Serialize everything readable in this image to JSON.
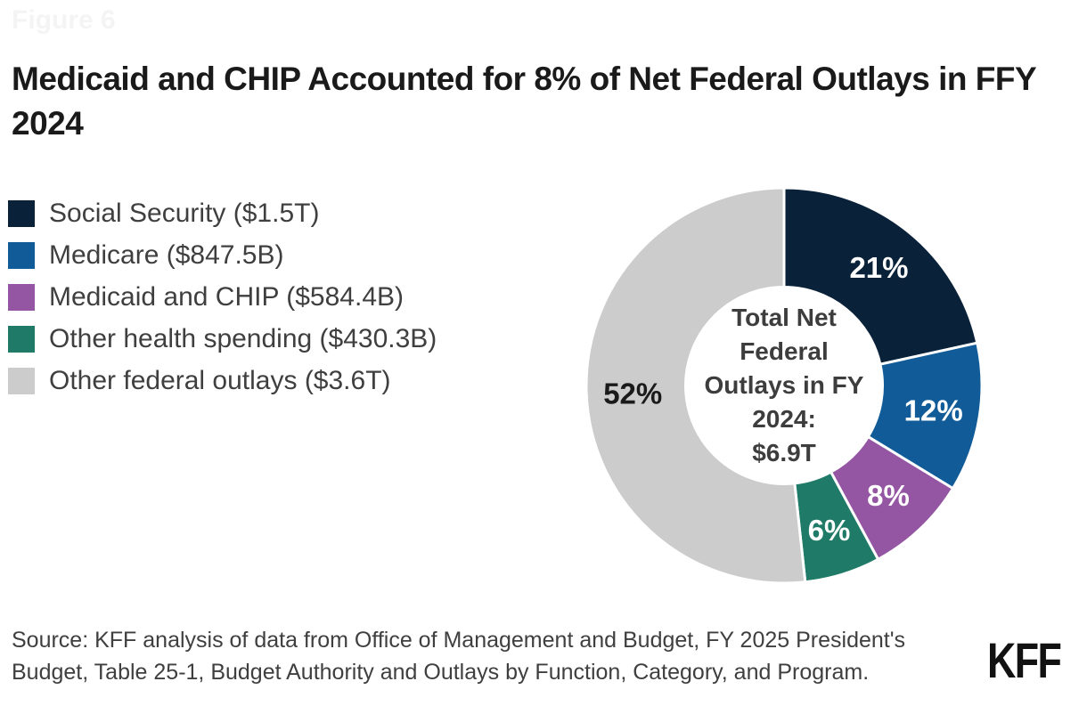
{
  "figure_label": "Figure 6",
  "title": "Medicaid and CHIP Accounted for 8% of Net Federal Outlays in FFY 2024",
  "source": "Source: KFF analysis of data from Office of Management and Budget, FY 2025 President's Budget, Table 25-1, Budget Authority and Outlays by Function, Category, and Program.",
  "logo_text": "KFF",
  "colors": {
    "navy": "#0a2239",
    "blue": "#115c98",
    "purple": "#9456a3",
    "teal": "#1f7a67",
    "gray": "#cccccc",
    "title_text": "#1a1a1a",
    "body_text": "#3f3f3f",
    "separator": "#ffffff"
  },
  "chart_data": {
    "type": "pie",
    "donut": true,
    "start_angle_deg": 0,
    "direction": "clockwise",
    "legend_position": "left",
    "title": "Medicaid and CHIP Accounted for 8% of Net Federal Outlays in FFY 2024",
    "total_label": "Total Net\nFederal\nOutlays in FY\n2024:\n$6.9T",
    "total_value_trillions": 6.9,
    "series": [
      {
        "key": "social-security",
        "name": "Social Security",
        "amount_label": "$1.5T",
        "value_billions": 1500.0,
        "percent": 21,
        "percent_label": "21%",
        "legend_label": "Social Security ($1.5T)",
        "color": "#0a2239",
        "label_color": "#ffffff"
      },
      {
        "key": "medicare",
        "name": "Medicare",
        "amount_label": "$847.5B",
        "value_billions": 847.5,
        "percent": 12,
        "percent_label": "12%",
        "legend_label": "Medicare ($847.5B)",
        "color": "#115c98",
        "label_color": "#ffffff"
      },
      {
        "key": "medicaid-chip",
        "name": "Medicaid and CHIP",
        "amount_label": "$584.4B",
        "value_billions": 584.4,
        "percent": 8,
        "percent_label": "8%",
        "legend_label": "Medicaid and CHIP ($584.4B)",
        "color": "#9456a3",
        "label_color": "#ffffff"
      },
      {
        "key": "other-health",
        "name": "Other health spending",
        "amount_label": "$430.3B",
        "value_billions": 430.3,
        "percent": 6,
        "percent_label": "6%",
        "legend_label": "Other health spending ($430.3B)",
        "color": "#1f7a67",
        "label_color": "#ffffff"
      },
      {
        "key": "other-federal",
        "name": "Other federal outlays",
        "amount_label": "$3.6T",
        "value_billions": 3600.0,
        "percent": 52,
        "percent_label": "52%",
        "legend_label": "Other federal outlays ($3.6T)",
        "color": "#cccccc",
        "label_color": "#1a1a1a"
      }
    ]
  }
}
